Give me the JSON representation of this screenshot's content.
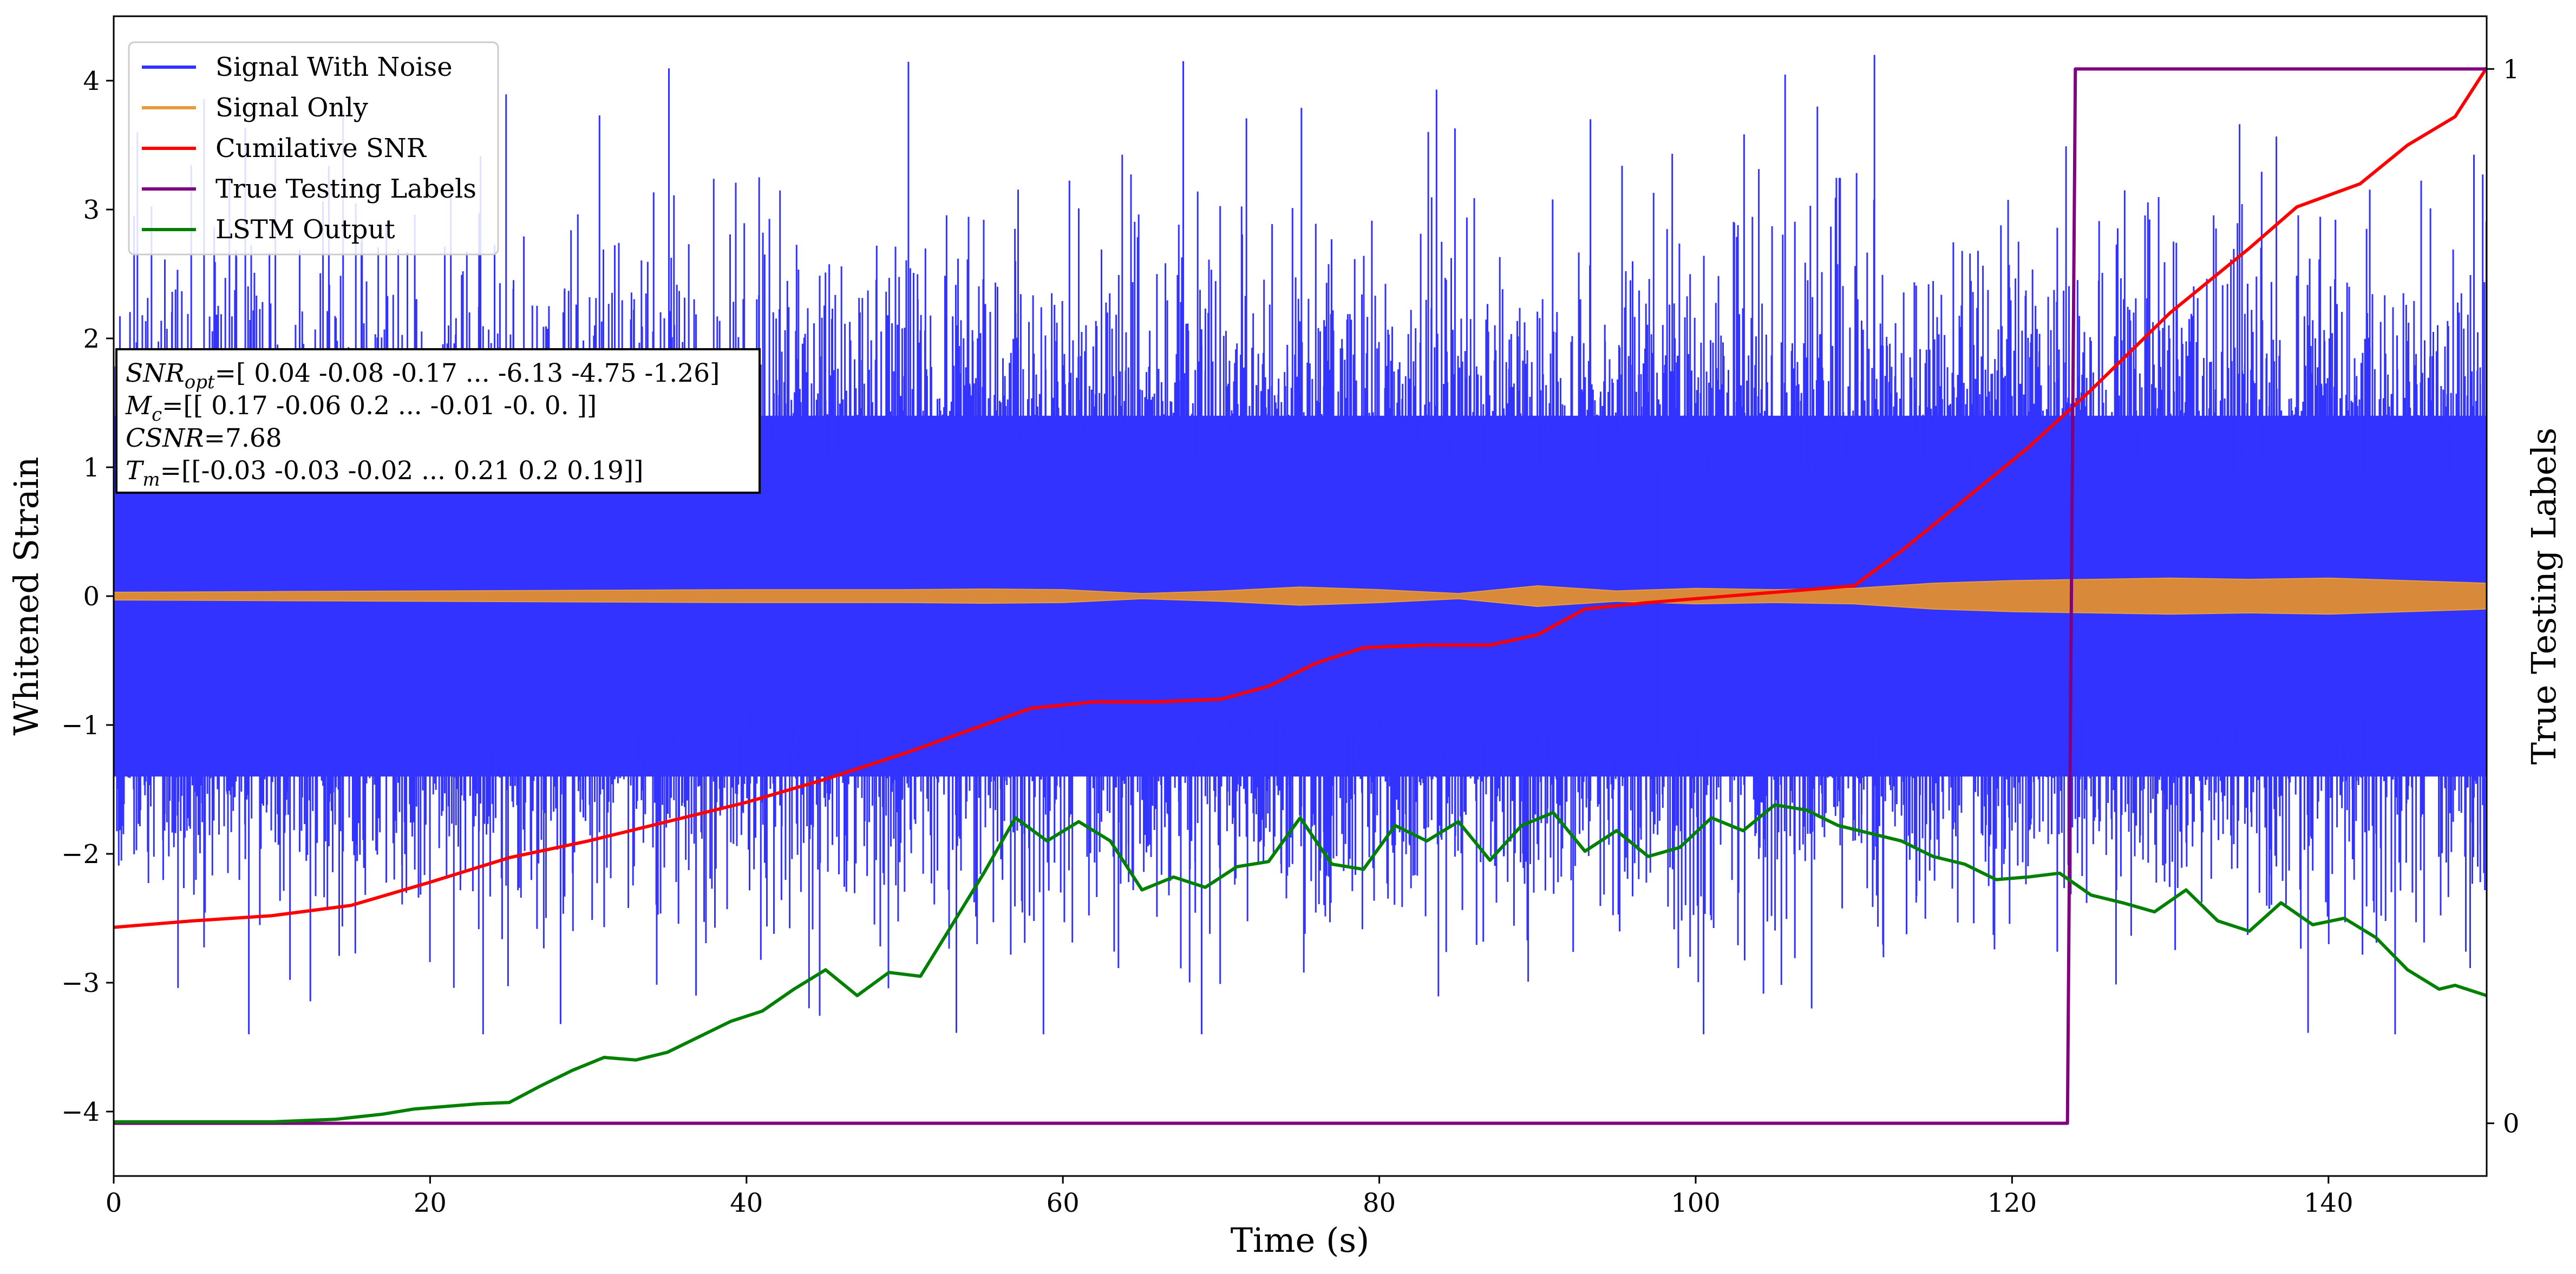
{
  "chart_data": {
    "type": "line",
    "xlabel": "Time (s)",
    "ylabel": "Whitened Strain",
    "y2label": "True Testing Labels",
    "xlim": [
      0,
      150
    ],
    "ylim": [
      -4.5,
      4.5
    ],
    "y2lim": [
      -0.05,
      1.05
    ],
    "xticks": [
      0,
      20,
      40,
      60,
      80,
      100,
      120,
      140
    ],
    "yticks": [
      -4,
      -3,
      -2,
      -1,
      0,
      1,
      2,
      3,
      4
    ],
    "y2ticks": [
      0,
      1
    ],
    "legend_position": "top-left",
    "grid": false,
    "series": [
      {
        "name": "Signal With Noise",
        "axis": "left",
        "color": "#3333ff",
        "kind": "noise-band",
        "description_values": {
          "core_low": -1.4,
          "core_high": 1.4,
          "peak_high": 4.2,
          "peak_low": -3.4
        }
      },
      {
        "name": "Signal Only",
        "axis": "left",
        "color": "#e69c3c",
        "kind": "envelope",
        "x": [
          0,
          10,
          20,
          30,
          40,
          50,
          55,
          60,
          65,
          70,
          75,
          80,
          85,
          90,
          95,
          100,
          105,
          110,
          115,
          120,
          125,
          130,
          135,
          140,
          145,
          150
        ],
        "amplitude": [
          0.03,
          0.035,
          0.04,
          0.045,
          0.05,
          0.05,
          0.055,
          0.05,
          0.02,
          0.04,
          0.07,
          0.05,
          0.02,
          0.08,
          0.04,
          0.06,
          0.05,
          0.06,
          0.1,
          0.12,
          0.13,
          0.14,
          0.13,
          0.14,
          0.12,
          0.1
        ]
      },
      {
        "name": "Cumilative SNR",
        "axis": "left",
        "color": "#ff0000",
        "x": [
          0,
          5,
          10,
          15,
          20,
          25,
          30,
          35,
          40,
          45,
          50,
          55,
          58,
          62,
          66,
          70,
          73,
          76,
          79,
          83,
          87,
          90,
          93,
          97,
          100,
          105,
          110,
          113,
          117,
          121,
          125,
          130,
          135,
          138,
          142,
          145,
          148,
          150
        ],
        "y": [
          -2.57,
          -2.52,
          -2.48,
          -2.4,
          -2.22,
          -2.03,
          -1.9,
          -1.75,
          -1.6,
          -1.42,
          -1.22,
          -1.0,
          -0.87,
          -0.82,
          -0.82,
          -0.8,
          -0.7,
          -0.52,
          -0.4,
          -0.38,
          -0.38,
          -0.3,
          -0.1,
          -0.05,
          -0.02,
          0.03,
          0.08,
          0.35,
          0.75,
          1.15,
          1.6,
          2.2,
          2.7,
          3.02,
          3.2,
          3.5,
          3.72,
          4.1
        ]
      },
      {
        "name": "True Testing Labels",
        "axis": "right",
        "color": "#800080",
        "x": [
          0,
          123.5,
          124,
          150
        ],
        "y": [
          0,
          0,
          1,
          1
        ]
      },
      {
        "name": "LSTM Output",
        "axis": "left",
        "color": "#008000",
        "x": [
          0,
          10,
          14,
          17,
          19,
          21,
          23,
          25,
          27,
          29,
          31,
          33,
          35,
          37,
          39,
          41,
          43,
          45,
          47,
          49,
          51,
          53,
          55,
          57,
          59,
          61,
          63,
          65,
          67,
          69,
          71,
          73,
          75,
          77,
          79,
          81,
          83,
          85,
          87,
          89,
          91,
          93,
          95,
          97,
          99,
          101,
          103,
          105,
          107,
          109,
          111,
          113,
          115,
          117,
          119,
          121,
          123,
          125,
          127,
          129,
          131,
          133,
          135,
          137,
          139,
          141,
          143,
          145,
          147,
          148,
          150
        ],
        "y": [
          -4.08,
          -4.08,
          -4.06,
          -4.02,
          -3.98,
          -3.96,
          -3.94,
          -3.93,
          -3.8,
          -3.68,
          -3.58,
          -3.6,
          -3.54,
          -3.42,
          -3.3,
          -3.22,
          -3.05,
          -2.9,
          -3.1,
          -2.92,
          -2.95,
          -2.55,
          -2.15,
          -1.72,
          -1.9,
          -1.75,
          -1.9,
          -2.28,
          -2.18,
          -2.26,
          -2.1,
          -2.06,
          -1.72,
          -2.08,
          -2.12,
          -1.78,
          -1.9,
          -1.75,
          -2.05,
          -1.78,
          -1.68,
          -1.98,
          -1.82,
          -2.02,
          -1.95,
          -1.72,
          -1.82,
          -1.62,
          -1.66,
          -1.78,
          -1.84,
          -1.9,
          -2.02,
          -2.08,
          -2.2,
          -2.18,
          -2.15,
          -2.32,
          -2.38,
          -2.45,
          -2.28,
          -2.52,
          -2.6,
          -2.38,
          -2.55,
          -2.5,
          -2.65,
          -2.9,
          -3.05,
          -3.02,
          -3.1
        ]
      }
    ],
    "legend": {
      "entries": [
        "Signal With Noise",
        "Signal Only",
        "Cumilative SNR",
        "True Testing Labels",
        "LSTM Output"
      ]
    },
    "annotation": {
      "lines": [
        {
          "sym": "SNR",
          "sub": "opt",
          "rest": "=[ 0.04 -0.08 -0.17 ... -6.13 -4.75 -1.26]"
        },
        {
          "sym": "M",
          "sub": "c",
          "rest": "=[[ 0.17 -0.06  0.2  ... -0.01 -0.    0.  ]]"
        },
        {
          "sym": "CSNR",
          "sub": "",
          "rest": "=7.68"
        },
        {
          "sym": "T",
          "sub": "m",
          "rest": "=[[-0.03 -0.03 -0.02 ...  0.21  0.2   0.19]]"
        }
      ]
    }
  }
}
